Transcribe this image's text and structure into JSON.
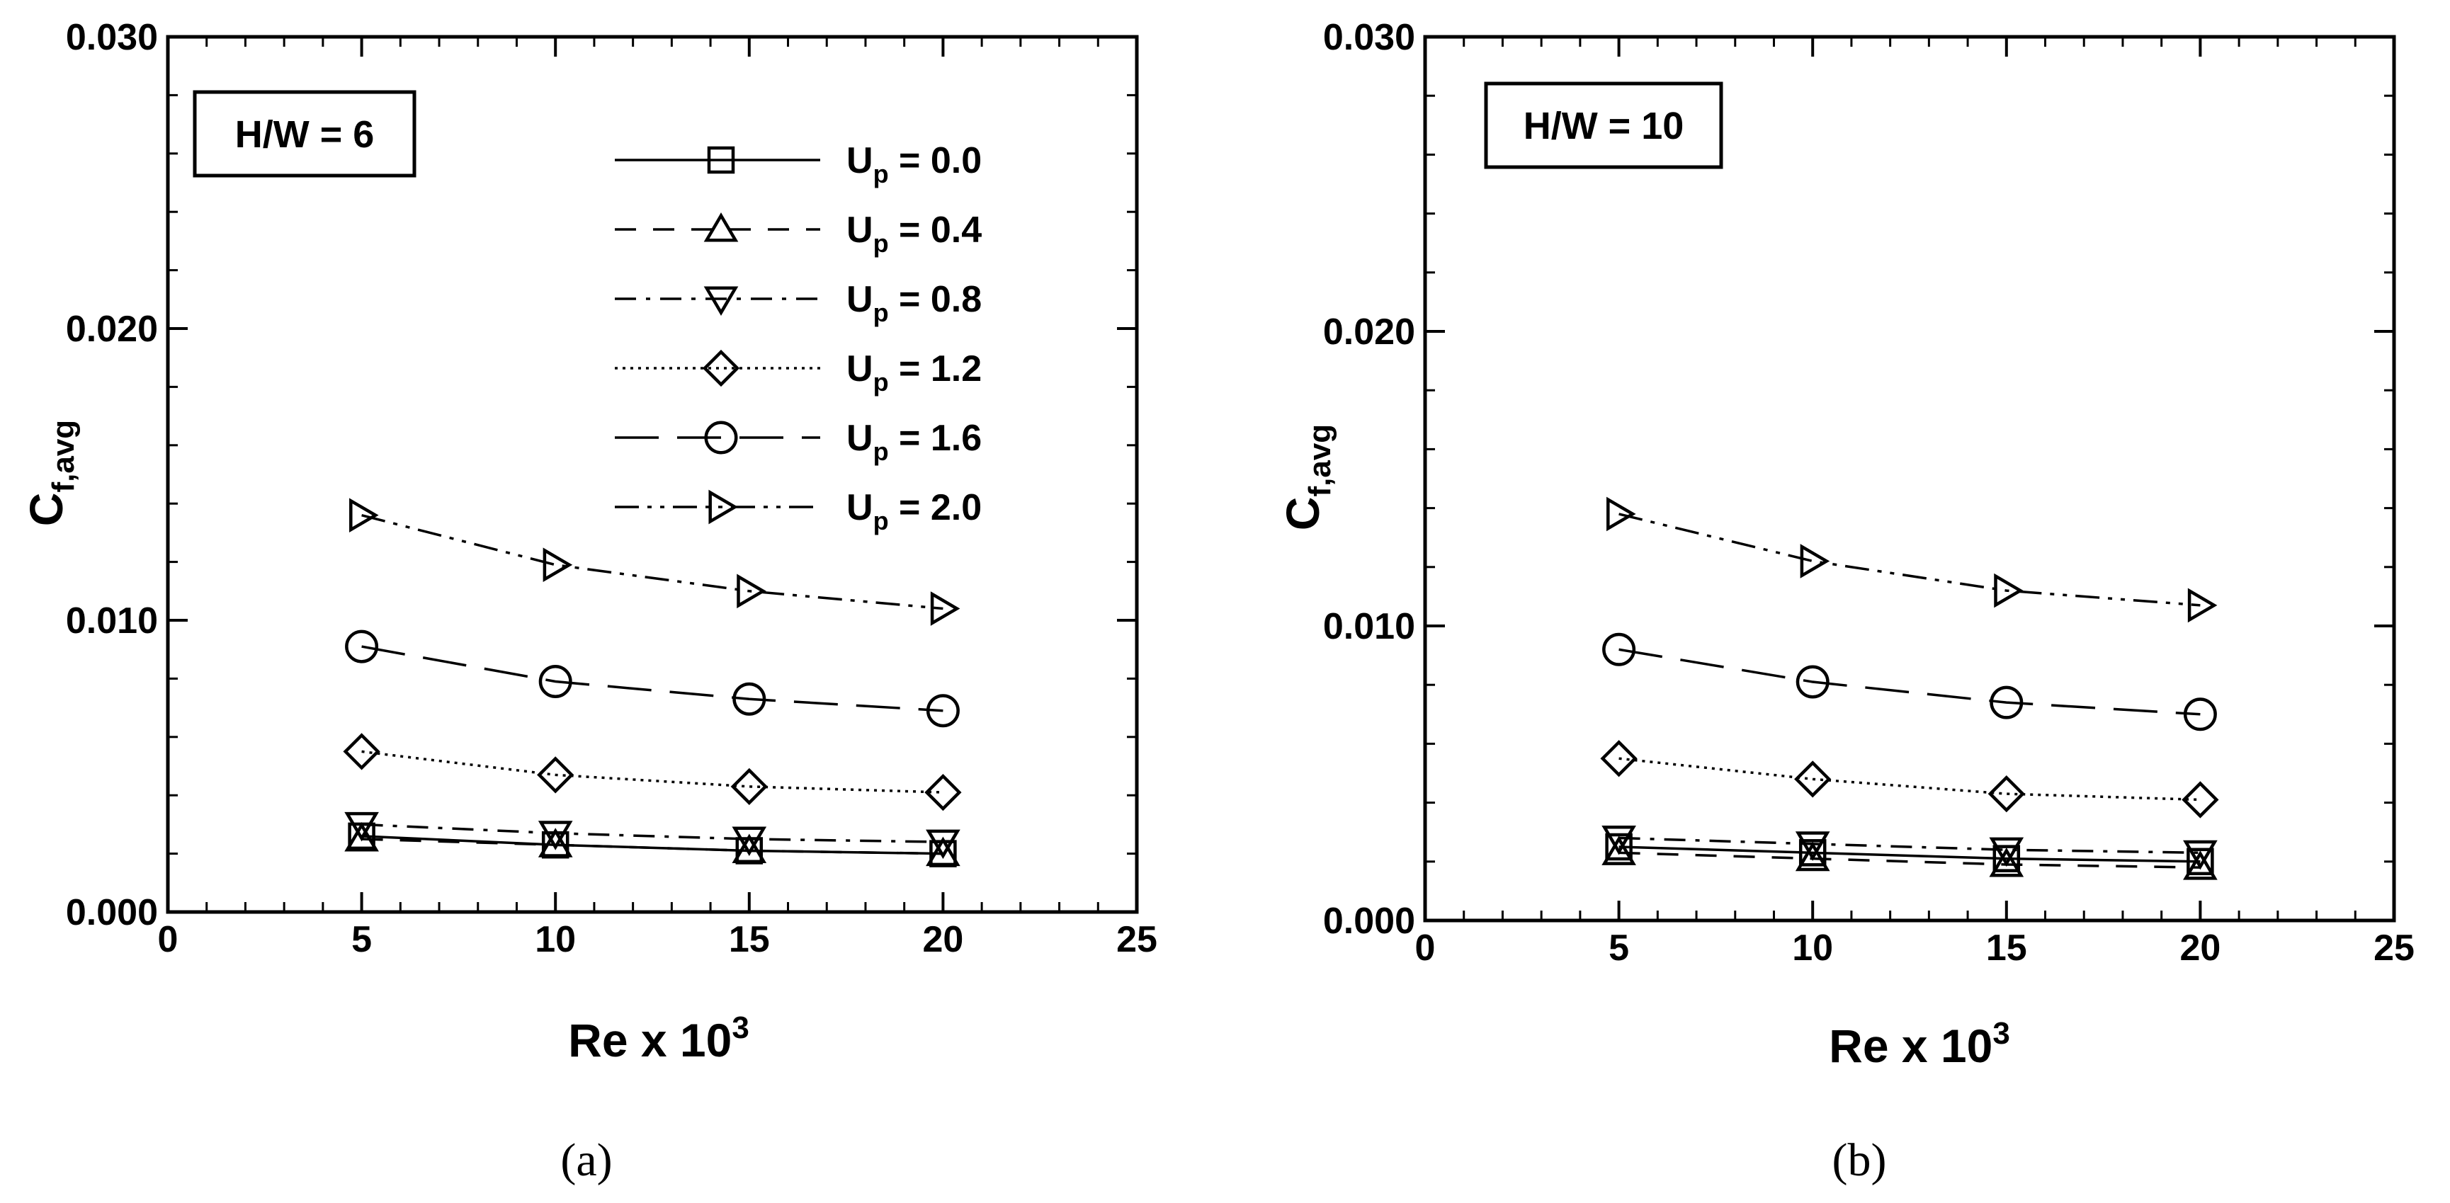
{
  "chart_data": [
    {
      "type": "line",
      "panel_label": "(a)",
      "condition": "H/W = 6",
      "xlabel": {
        "base": "Re x 10",
        "sup": "3"
      },
      "ylabel": {
        "base": "C",
        "sub": "f,avg"
      },
      "xlim": [
        0,
        25
      ],
      "ylim": [
        0,
        0.03
      ],
      "xticks": [
        "0",
        "5",
        "10",
        "15",
        "20",
        "25"
      ],
      "yticks": [
        "0.000",
        "0.010",
        "0.020",
        "0.030"
      ],
      "x": [
        5,
        10,
        15,
        20
      ],
      "grid": false,
      "legend": {
        "placement": "top-right",
        "entries": [
          {
            "base": "U",
            "sub": "p",
            "value": " = 0.0"
          },
          {
            "base": "U",
            "sub": "p",
            "value": " = 0.4"
          },
          {
            "base": "U",
            "sub": "p",
            "value": " = 0.8"
          },
          {
            "base": "U",
            "sub": "p",
            "value": " = 1.2"
          },
          {
            "base": "U",
            "sub": "p",
            "value": " = 1.6"
          },
          {
            "base": "U",
            "sub": "p",
            "value": " = 2.0"
          }
        ]
      },
      "series": [
        {
          "marker": "square",
          "dash": "solid",
          "values": [
            0.0026,
            0.0023,
            0.0021,
            0.002
          ]
        },
        {
          "marker": "triangle-up",
          "dash": "dashed",
          "values": [
            0.0025,
            0.0023,
            0.0021,
            0.002
          ]
        },
        {
          "marker": "triangle-down",
          "dash": "dashdot",
          "values": [
            0.003,
            0.0027,
            0.0025,
            0.0024
          ]
        },
        {
          "marker": "diamond",
          "dash": "dotted",
          "values": [
            0.0055,
            0.0047,
            0.0043,
            0.0041
          ]
        },
        {
          "marker": "circle",
          "dash": "longdash",
          "values": [
            0.0091,
            0.0079,
            0.0073,
            0.0069
          ]
        },
        {
          "marker": "triangle-right",
          "dash": "dashdotdot",
          "values": [
            0.0136,
            0.0119,
            0.011,
            0.0104
          ]
        }
      ]
    },
    {
      "type": "line",
      "panel_label": "(b)",
      "condition": "H/W = 10",
      "xlabel": {
        "base": "Re x 10",
        "sup": "3"
      },
      "ylabel": {
        "base": "C",
        "sub": "f,avg"
      },
      "xlim": [
        0,
        25
      ],
      "ylim": [
        0,
        0.03
      ],
      "xticks": [
        "0",
        "5",
        "10",
        "15",
        "20",
        "25"
      ],
      "yticks": [
        "0.000",
        "0.010",
        "0.020",
        "0.030"
      ],
      "x": [
        5,
        10,
        15,
        20
      ],
      "grid": false,
      "series": [
        {
          "marker": "square",
          "dash": "solid",
          "values": [
            0.0025,
            0.0023,
            0.0021,
            0.002
          ]
        },
        {
          "marker": "triangle-up",
          "dash": "dashed",
          "values": [
            0.0023,
            0.0021,
            0.0019,
            0.0018
          ]
        },
        {
          "marker": "triangle-down",
          "dash": "dashdot",
          "values": [
            0.0028,
            0.0026,
            0.0024,
            0.0023
          ]
        },
        {
          "marker": "diamond",
          "dash": "dotted",
          "values": [
            0.0055,
            0.0048,
            0.0043,
            0.0041
          ]
        },
        {
          "marker": "circle",
          "dash": "longdash",
          "values": [
            0.0092,
            0.0081,
            0.0074,
            0.007
          ]
        },
        {
          "marker": "triangle-right",
          "dash": "dashdotdot",
          "values": [
            0.0138,
            0.0122,
            0.0112,
            0.0107
          ]
        }
      ]
    }
  ]
}
